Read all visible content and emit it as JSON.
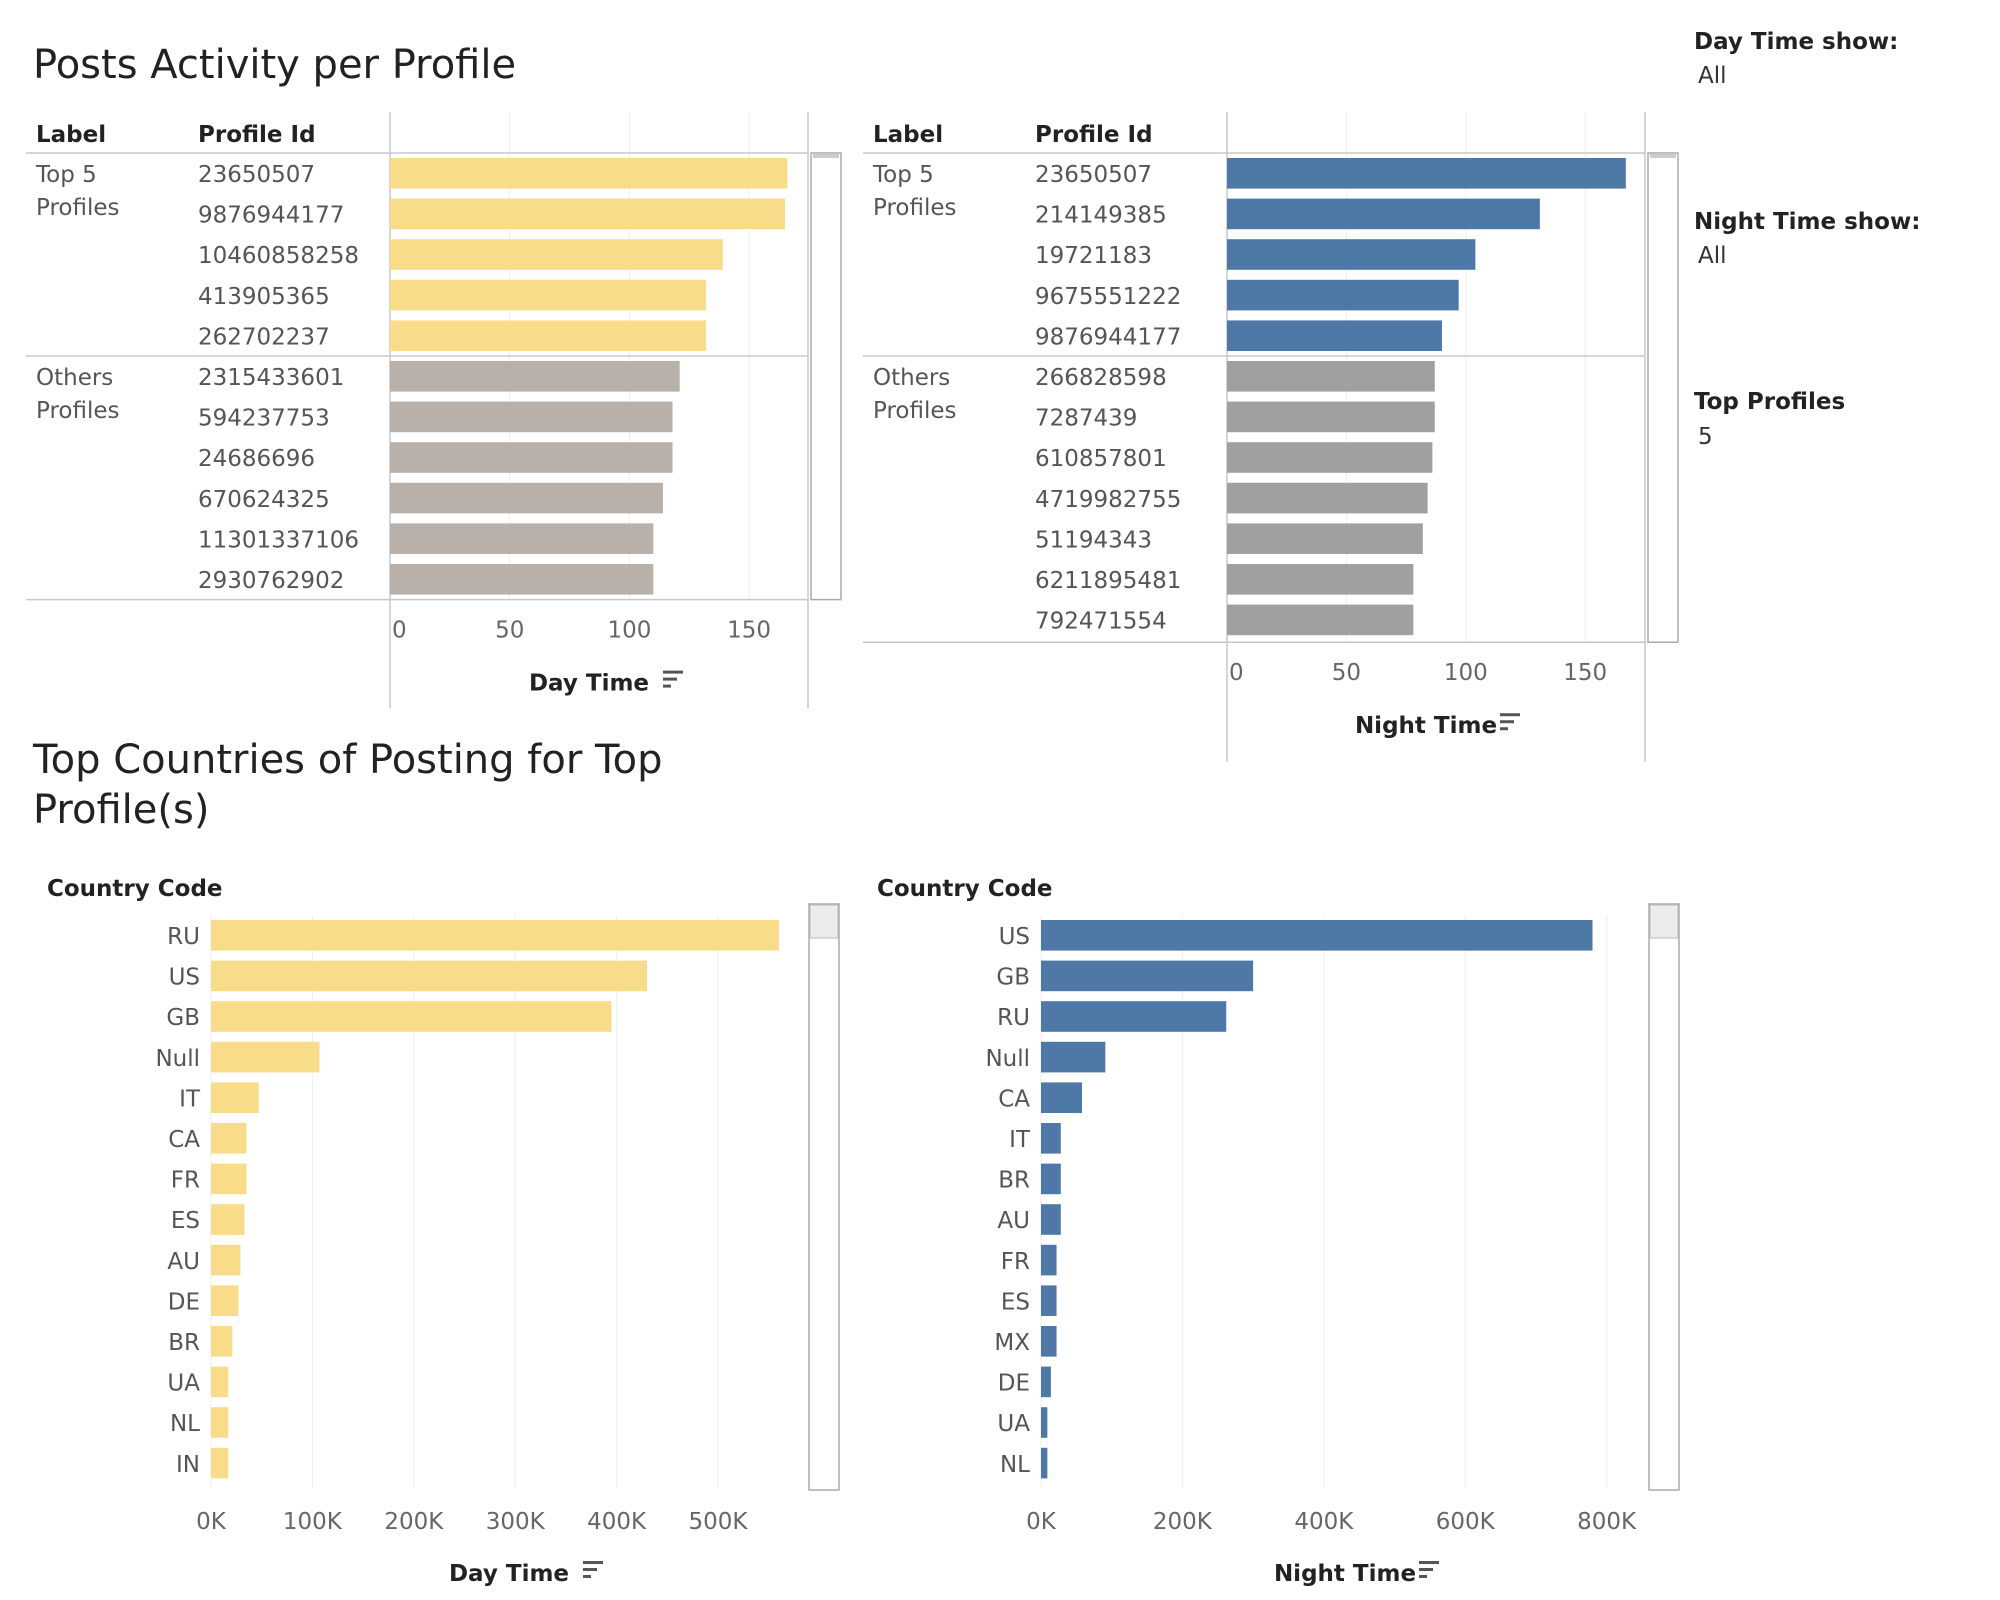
{
  "section1_title": "Posts Activity per Profile",
  "section2_title_line1": "Top Countries of Posting for Top",
  "section2_title_line2": "Profile(s)",
  "filters": [
    {
      "label": "Day Time show:",
      "value": "All"
    },
    {
      "label": "Night Time show:",
      "value": "All"
    },
    {
      "label": "Top Profiles",
      "value": "5"
    }
  ],
  "colors": {
    "day": "#f9dc8a",
    "day_others": "#bab0aa",
    "night": "#4e79a7",
    "night_others": "#a0a0a0"
  },
  "sort_icon": "sort-descending-icon",
  "chart_data": [
    {
      "type": "bar",
      "orientation": "horizontal",
      "header_label": "Label",
      "header_profile": "Profile Id",
      "xlabel": "Day Time",
      "xlim": [
        0,
        170
      ],
      "ticks": [
        0,
        50,
        100,
        150
      ],
      "tick_labels": [
        "0",
        "50",
        "100",
        "150"
      ],
      "groups": [
        {
          "name_line1": "Top 5",
          "name_line2": "Profiles",
          "color_key": "day",
          "rows": [
            {
              "id": "23650507",
              "value": 166
            },
            {
              "id": "9876944177",
              "value": 165
            },
            {
              "id": "10460858258",
              "value": 139
            },
            {
              "id": "413905365",
              "value": 132
            },
            {
              "id": "262702237",
              "value": 132
            }
          ]
        },
        {
          "name_line1": "Others",
          "name_line2": "Profiles",
          "color_key": "day_others",
          "rows": [
            {
              "id": "2315433601",
              "value": 121
            },
            {
              "id": "594237753",
              "value": 118
            },
            {
              "id": "24686696",
              "value": 118
            },
            {
              "id": "670624325",
              "value": 114
            },
            {
              "id": "11301337106",
              "value": 110
            },
            {
              "id": "2930762902",
              "value": 110
            }
          ]
        }
      ]
    },
    {
      "type": "bar",
      "orientation": "horizontal",
      "header_label": "Label",
      "header_profile": "Profile Id",
      "xlabel": "Night Time",
      "xlim": [
        0,
        170
      ],
      "ticks": [
        0,
        50,
        100,
        150
      ],
      "tick_labels": [
        "0",
        "50",
        "100",
        "150"
      ],
      "groups": [
        {
          "name_line1": "Top 5",
          "name_line2": "Profiles",
          "color_key": "night",
          "rows": [
            {
              "id": "23650507",
              "value": 167
            },
            {
              "id": "214149385",
              "value": 131
            },
            {
              "id": "19721183",
              "value": 104
            },
            {
              "id": "9675551222",
              "value": 97
            },
            {
              "id": "9876944177",
              "value": 90
            }
          ]
        },
        {
          "name_line1": "Others",
          "name_line2": "Profiles",
          "color_key": "night_others",
          "rows": [
            {
              "id": "266828598",
              "value": 87
            },
            {
              "id": "7287439",
              "value": 87
            },
            {
              "id": "610857801",
              "value": 86
            },
            {
              "id": "4719982755",
              "value": 84
            },
            {
              "id": "51194343",
              "value": 82
            },
            {
              "id": "6211895481",
              "value": 78
            },
            {
              "id": "792471554",
              "value": 78
            }
          ]
        }
      ]
    },
    {
      "type": "bar",
      "orientation": "horizontal",
      "header_label": "Country Code",
      "xlabel": "Day Time",
      "xlim": [
        0,
        570000
      ],
      "ticks": [
        0,
        100000,
        200000,
        300000,
        400000,
        500000
      ],
      "tick_labels": [
        "0K",
        "100K",
        "200K",
        "300K",
        "400K",
        "500K"
      ],
      "color_key": "day",
      "categories": [
        "RU",
        "US",
        "GB",
        "Null",
        "IT",
        "CA",
        "FR",
        "ES",
        "AU",
        "DE",
        "BR",
        "UA",
        "NL",
        "IN"
      ],
      "values": [
        560000,
        430000,
        395000,
        107000,
        47000,
        35000,
        35000,
        33000,
        29000,
        27000,
        21000,
        17000,
        17000,
        17000
      ]
    },
    {
      "type": "bar",
      "orientation": "horizontal",
      "header_label": "Country Code",
      "xlabel": "Night Time",
      "xlim": [
        0,
        850000
      ],
      "ticks": [
        0,
        200000,
        400000,
        600000,
        800000
      ],
      "tick_labels": [
        "0K",
        "200K",
        "400K",
        "600K",
        "800K"
      ],
      "color_key": "night",
      "categories": [
        "US",
        "GB",
        "RU",
        "Null",
        "CA",
        "IT",
        "BR",
        "AU",
        "FR",
        "ES",
        "MX",
        "DE",
        "UA",
        "NL"
      ],
      "values": [
        780000,
        300000,
        262000,
        91000,
        58000,
        28000,
        28000,
        28000,
        22000,
        22000,
        22000,
        14000,
        9000,
        9000
      ]
    }
  ]
}
